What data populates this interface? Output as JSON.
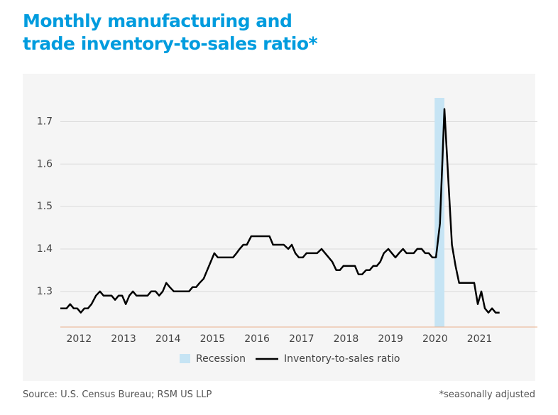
{
  "chart_data": {
    "type": "line",
    "title": "Monthly manufacturing and trade inventory-to-sales ratio*",
    "source": "Source: U.S. Census Bureau; RSM US LLP",
    "note": "*seasonally adjusted",
    "xlim": [
      2012,
      2022.8
    ],
    "xticks": [
      {
        "value": 2012.5,
        "label": "2012"
      },
      {
        "value": 2013.5,
        "label": "2013"
      },
      {
        "value": 2014.5,
        "label": "2014"
      },
      {
        "value": 2015.5,
        "label": "2015"
      },
      {
        "value": 2016.5,
        "label": "2016"
      },
      {
        "value": 2017.5,
        "label": "2017"
      },
      {
        "value": 2018.5,
        "label": "2018"
      },
      {
        "value": 2019.5,
        "label": "2019"
      },
      {
        "value": 2020.5,
        "label": "2020"
      },
      {
        "value": 2021.5,
        "label": "2021"
      }
    ],
    "ylim": [
      1.216,
      1.756
    ],
    "yticks": [
      1.3,
      1.4,
      1.5,
      1.6,
      1.7
    ],
    "grid": true,
    "shaded": {
      "name": "Recession",
      "color": "#c6e4f4",
      "x": [
        2020.49,
        2020.71
      ]
    },
    "series": [
      {
        "name": "Inventory-to-sales ratio",
        "color": "#000000",
        "x": [
          2012.08,
          2012.22,
          2012.3,
          2012.38,
          2012.46,
          2012.54,
          2012.62,
          2012.7,
          2012.78,
          2012.88,
          2012.97,
          2013.05,
          2013.23,
          2013.31,
          2013.39,
          2013.47,
          2013.55,
          2013.63,
          2013.71,
          2013.79,
          2014.04,
          2014.12,
          2014.22,
          2014.3,
          2014.38,
          2014.46,
          2014.54,
          2014.63,
          2014.97,
          2015.05,
          2015.13,
          2015.21,
          2015.3,
          2015.38,
          2015.46,
          2015.54,
          2015.62,
          2015.96,
          2016.04,
          2016.11,
          2016.19,
          2016.27,
          2016.37,
          2016.78,
          2016.86,
          2017.1,
          2017.2,
          2017.28,
          2017.36,
          2017.44,
          2017.53,
          2017.61,
          2017.85,
          2017.95,
          2018.03,
          2018.11,
          2018.19,
          2018.28,
          2018.36,
          2018.44,
          2018.7,
          2018.78,
          2018.86,
          2018.95,
          2019.03,
          2019.11,
          2019.19,
          2019.27,
          2019.35,
          2019.45,
          2019.53,
          2019.61,
          2019.69,
          2019.78,
          2019.86,
          2020.02,
          2020.1,
          2020.2,
          2020.28,
          2020.36,
          2020.44,
          2020.52,
          2020.61,
          2020.71,
          2020.8,
          2020.88,
          2020.96,
          2021.04,
          2021.38,
          2021.46,
          2021.54,
          2021.62,
          2021.7,
          2021.78,
          2021.86,
          2021.95
        ],
        "values": [
          1.26,
          1.26,
          1.27,
          1.26,
          1.26,
          1.25,
          1.26,
          1.26,
          1.27,
          1.29,
          1.3,
          1.29,
          1.29,
          1.28,
          1.29,
          1.29,
          1.27,
          1.29,
          1.3,
          1.29,
          1.29,
          1.3,
          1.3,
          1.29,
          1.3,
          1.32,
          1.31,
          1.3,
          1.3,
          1.31,
          1.31,
          1.32,
          1.33,
          1.35,
          1.37,
          1.39,
          1.38,
          1.38,
          1.39,
          1.4,
          1.41,
          1.41,
          1.43,
          1.43,
          1.41,
          1.41,
          1.4,
          1.41,
          1.39,
          1.38,
          1.38,
          1.39,
          1.39,
          1.4,
          1.39,
          1.38,
          1.37,
          1.35,
          1.35,
          1.36,
          1.36,
          1.34,
          1.34,
          1.35,
          1.35,
          1.36,
          1.36,
          1.37,
          1.39,
          1.4,
          1.39,
          1.38,
          1.39,
          1.4,
          1.39,
          1.39,
          1.4,
          1.4,
          1.39,
          1.39,
          1.38,
          1.38,
          1.46,
          1.73,
          1.56,
          1.41,
          1.36,
          1.32,
          1.32,
          1.27,
          1.3,
          1.26,
          1.25,
          1.26,
          1.25,
          1.25
        ]
      }
    ]
  }
}
